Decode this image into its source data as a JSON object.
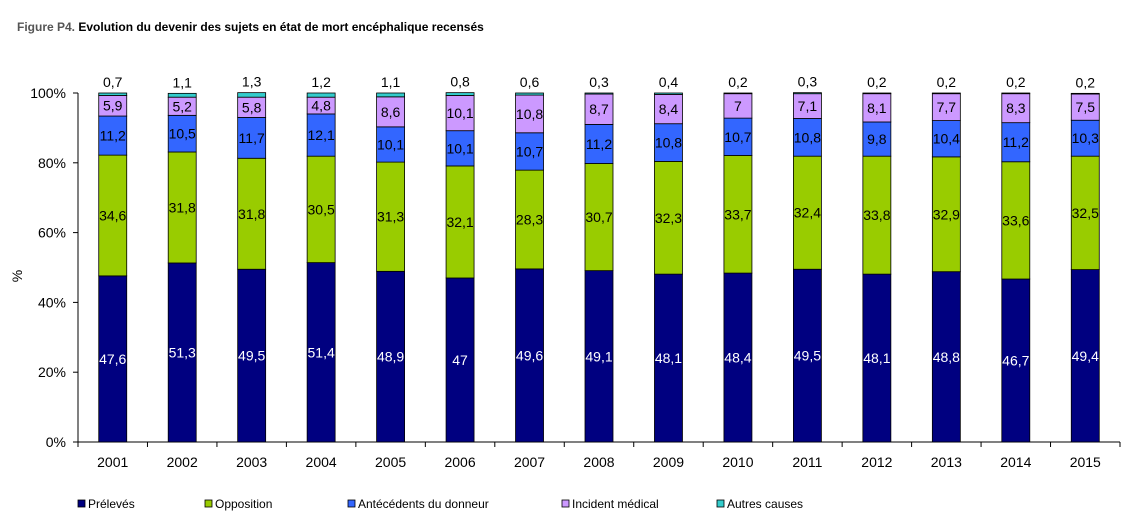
{
  "figure": {
    "prefix": "Figure P4.",
    "title": "Evolution du devenir des sujets en état de mort encéphalique recensés"
  },
  "chart_data": {
    "type": "bar",
    "stacked": true,
    "percent_stacked": true,
    "ylabel": "%",
    "ylim": [
      0,
      100
    ],
    "yticks": [
      "0%",
      "20%",
      "40%",
      "60%",
      "80%",
      "100%"
    ],
    "grid": false,
    "legend_position": "bottom",
    "categories": [
      "2001",
      "2002",
      "2003",
      "2004",
      "2005",
      "2006",
      "2007",
      "2008",
      "2009",
      "2010",
      "2011",
      "2012",
      "2013",
      "2014",
      "2015"
    ],
    "series": [
      {
        "name": "Prélevés",
        "color": "#000080",
        "label_color": "#ffffff",
        "values": [
          47.6,
          51.3,
          49.5,
          51.4,
          48.9,
          47,
          49.6,
          49.1,
          48.1,
          48.4,
          49.5,
          48.1,
          48.8,
          46.7,
          49.4
        ],
        "labels": [
          "47,6",
          "51,3",
          "49,5",
          "51,4",
          "48,9",
          "47",
          "49,6",
          "49,1",
          "48,1",
          "48,4",
          "49,5",
          "48,1",
          "48,8",
          "46,7",
          "49,4"
        ]
      },
      {
        "name": "Opposition",
        "color": "#99cc00",
        "label_color": "#000000",
        "values": [
          34.6,
          31.8,
          31.8,
          30.5,
          31.3,
          32.1,
          28.3,
          30.7,
          32.3,
          33.7,
          32.4,
          33.8,
          32.9,
          33.6,
          32.5
        ],
        "labels": [
          "34,6",
          "31,8",
          "31,8",
          "30,5",
          "31,3",
          "32,1",
          "28,3",
          "30,7",
          "32,3",
          "33,7",
          "32,4",
          "33,8",
          "32,9",
          "33,6",
          "32,5"
        ]
      },
      {
        "name": "Antécédents du donneur",
        "color": "#3366ff",
        "label_color": "#000000",
        "values": [
          11.2,
          10.5,
          11.7,
          12.1,
          10.1,
          10.1,
          10.7,
          11.2,
          10.8,
          10.7,
          10.8,
          9.8,
          10.4,
          11.2,
          10.3
        ],
        "labels": [
          "11,2",
          "10,5",
          "11,7",
          "12,1",
          "10,1",
          "10,1",
          "10,7",
          "11,2",
          "10,8",
          "10,7",
          "10,8",
          "9,8",
          "10,4",
          "11,2",
          "10,3"
        ]
      },
      {
        "name": "Incident médical",
        "color": "#cc99ff",
        "label_color": "#000000",
        "values": [
          5.9,
          5.2,
          5.8,
          4.8,
          8.6,
          10.1,
          10.8,
          8.7,
          8.4,
          7,
          7.1,
          8.1,
          7.7,
          8.3,
          7.5
        ],
        "labels": [
          "5,9",
          "5,2",
          "5,8",
          "4,8",
          "8,6",
          "10,1",
          "10,8",
          "8,7",
          "8,4",
          "7",
          "7,1",
          "8,1",
          "7,7",
          "8,3",
          "7,5"
        ]
      },
      {
        "name": "Autres causes",
        "color": "#33cccc",
        "label_color": "#000000",
        "values": [
          0.7,
          1.1,
          1.3,
          1.2,
          1.1,
          0.8,
          0.6,
          0.3,
          0.4,
          0.2,
          0.3,
          0.2,
          0.2,
          0.2,
          0.2
        ],
        "labels": [
          "0,7",
          "1,1",
          "1,3",
          "1,2",
          "1,1",
          "0,8",
          "0,6",
          "0,3",
          "0,4",
          "0,2",
          "0,3",
          "0,2",
          "0,2",
          "0,2",
          "0,2"
        ]
      }
    ]
  }
}
